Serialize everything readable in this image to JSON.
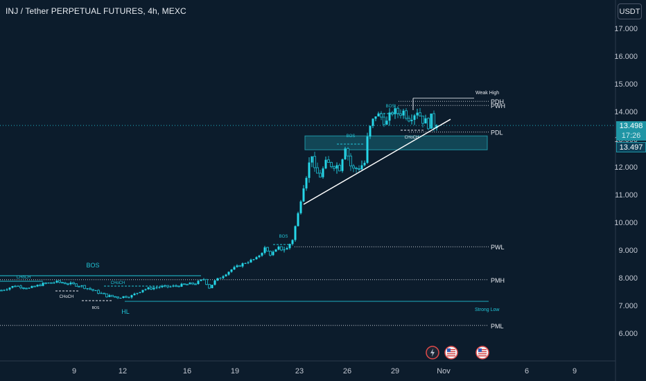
{
  "header": {
    "title": "INJ / Tether PERPETUAL FUTURES, 4h, MEXC"
  },
  "price_scale": {
    "currency_button": "USDT"
  },
  "last_price": {
    "price": "13.498",
    "countdown": "17:26",
    "alt_price": "13.497"
  },
  "colors": {
    "background": "#0c1c2c",
    "candle": "#22c7d9",
    "lines": "#e6e9ef",
    "zone": "#1f95a5"
  },
  "events": [
    {
      "icon": "lightning-icon",
      "x": "Oct 31"
    },
    {
      "icon": "us-flag-icon",
      "x": "Nov 1"
    },
    {
      "icon": "us-flag-icon",
      "x": "Nov 3"
    }
  ],
  "chart_data": {
    "type": "candlestick",
    "title": "INJ / Tether PERPETUAL FUTURES, 4h, MEXC",
    "ylim": [
      5.0,
      17.6
    ],
    "y_ticks": [
      "17.000",
      "16.000",
      "15.000",
      "14.000",
      "13.000",
      "12.000",
      "11.000",
      "10.000",
      "9.000",
      "8.000",
      "7.000",
      "6.000"
    ],
    "x_ticks": [
      "9",
      "12",
      "16",
      "19",
      "23",
      "26",
      "29",
      "Nov",
      "6",
      "9"
    ],
    "close_path": [
      [
        0,
        7.55
      ],
      [
        5,
        7.72
      ],
      [
        10,
        7.62
      ],
      [
        15,
        7.78
      ],
      [
        20,
        7.85
      ],
      [
        25,
        7.78
      ],
      [
        29,
        7.7
      ],
      [
        33,
        7.55
      ],
      [
        38,
        7.35
      ],
      [
        42,
        7.3
      ],
      [
        47,
        7.35
      ],
      [
        51,
        7.58
      ],
      [
        57,
        7.67
      ],
      [
        61,
        7.68
      ],
      [
        66,
        7.75
      ],
      [
        70,
        7.8
      ],
      [
        73,
        7.95
      ],
      [
        75,
        7.65
      ],
      [
        77,
        7.88
      ],
      [
        83,
        8.3
      ],
      [
        88,
        8.55
      ],
      [
        92,
        8.7
      ],
      [
        95,
        9.05
      ],
      [
        97,
        8.85
      ],
      [
        100,
        9.05
      ],
      [
        103,
        9.05
      ],
      [
        105,
        9.4
      ],
      [
        107,
        10.3
      ],
      [
        109,
        11.4
      ],
      [
        111,
        12.1
      ],
      [
        112,
        12.5
      ],
      [
        113,
        11.8
      ],
      [
        115,
        11.7
      ],
      [
        117,
        12.1
      ],
      [
        120,
        12.1
      ],
      [
        122,
        12.0
      ],
      [
        124,
        12.8
      ],
      [
        126,
        12.05
      ],
      [
        127,
        11.9
      ],
      [
        129,
        12.0
      ],
      [
        131,
        12.15
      ],
      [
        132,
        13.0
      ],
      [
        133,
        13.4
      ],
      [
        135,
        13.9
      ],
      [
        137,
        13.8
      ],
      [
        139,
        13.6
      ],
      [
        141,
        14.0
      ],
      [
        143,
        13.95
      ],
      [
        145,
        14.0
      ],
      [
        147,
        13.8
      ],
      [
        149,
        13.95
      ],
      [
        150,
        14.05
      ],
      [
        152,
        13.7
      ],
      [
        154,
        13.55
      ],
      [
        155,
        13.75
      ],
      [
        156,
        13.5
      ],
      [
        157,
        13.498
      ]
    ],
    "levels": [
      {
        "label": "PDH",
        "value": 14.37,
        "style": "dotted"
      },
      {
        "label": "PWH",
        "value": 14.22,
        "style": "dotted"
      },
      {
        "label": "PDL",
        "value": 13.26,
        "style": "dotted"
      },
      {
        "label": "PWL",
        "value": 9.12,
        "style": "dotted"
      },
      {
        "label": "PMH",
        "value": 7.93,
        "style": "dotted"
      },
      {
        "label": "PML",
        "value": 6.28,
        "style": "dotted"
      },
      {
        "label": "Strong Low",
        "value": 7.15,
        "style": "solid"
      },
      {
        "label": "Weak High",
        "value": 14.48,
        "style": "solid"
      }
    ],
    "zone": {
      "top": 13.12,
      "bottom": 12.62
    },
    "trendline": {
      "from": [
        109,
        10.65
      ],
      "to": [
        162,
        13.72
      ]
    },
    "annotations": [
      "BOS",
      "CHoCH",
      "CHoCH",
      "CHoCH",
      "BOS",
      "HL",
      "BOS",
      "BOS",
      "BOS",
      "CHoCH"
    ]
  }
}
